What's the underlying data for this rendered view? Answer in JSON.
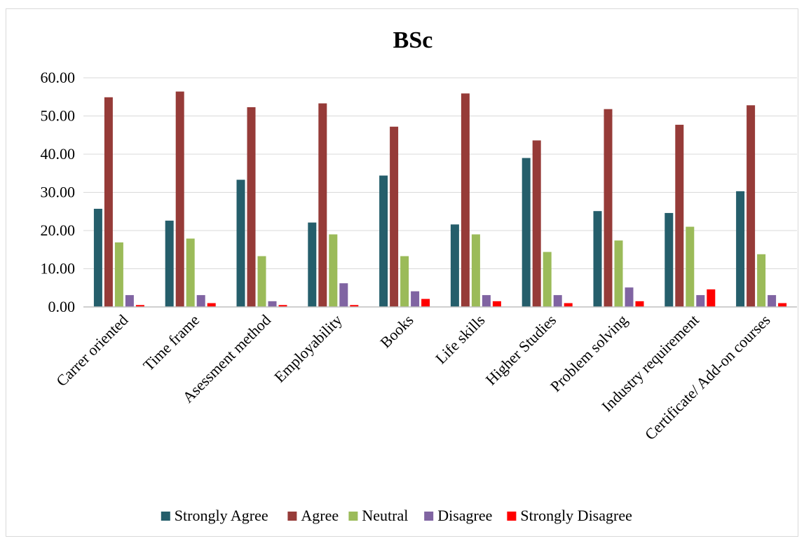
{
  "chart_data": {
    "type": "bar",
    "title": "BSc",
    "xlabel": "",
    "ylabel": "",
    "ylim": [
      0,
      60
    ],
    "ytick_step": 10,
    "ytick_labels": [
      "0.00",
      "10.00",
      "20.00",
      "30.00",
      "40.00",
      "50.00",
      "60.00"
    ],
    "grid": true,
    "legend_position": "bottom",
    "categories": [
      "Carrer oriented",
      "Time frame",
      "Asessment method",
      "Employability",
      "Books",
      "Life skills",
      "Higher Studies",
      "Problem solving",
      "Industry requirement",
      "Certificate/ Add-on courses"
    ],
    "series": [
      {
        "name": "Strongly Agree",
        "color": "#255e6b",
        "values": [
          25.7,
          22.6,
          33.3,
          22.1,
          34.4,
          21.6,
          39.0,
          25.1,
          24.6,
          30.3
        ]
      },
      {
        "name": "Agree",
        "color": "#963b38",
        "values": [
          54.9,
          56.4,
          52.3,
          53.3,
          47.2,
          55.9,
          43.6,
          51.8,
          47.7,
          52.8
        ]
      },
      {
        "name": "Neutral",
        "color": "#9bbb59",
        "values": [
          16.9,
          17.9,
          13.3,
          19.0,
          13.3,
          19.0,
          14.4,
          17.4,
          21.0,
          13.8
        ]
      },
      {
        "name": "Disagree",
        "color": "#8064a2",
        "values": [
          3.1,
          3.1,
          1.5,
          6.2,
          4.1,
          3.1,
          3.1,
          5.1,
          3.1,
          3.1
        ]
      },
      {
        "name": "Strongly Disagree",
        "color": "#ff0000",
        "values": [
          0.5,
          1.0,
          0.5,
          0.5,
          2.1,
          1.5,
          1.0,
          1.5,
          4.6,
          1.0
        ]
      }
    ]
  }
}
